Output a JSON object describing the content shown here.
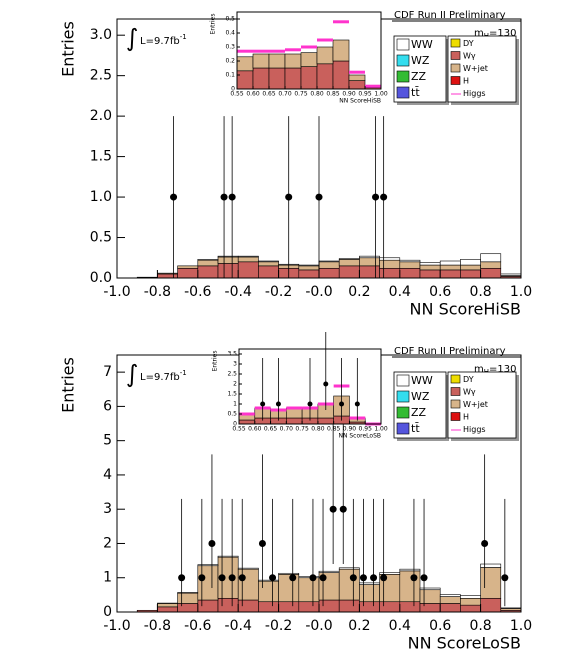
{
  "chart_data": [
    {
      "type": "histogram",
      "xlabel": "NN ScoreHiSB",
      "ylabel": "Entries",
      "bins": [
        -1.0,
        -0.9,
        -0.8,
        -0.7,
        -0.6,
        -0.5,
        -0.4,
        -0.3,
        -0.2,
        -0.1,
        0.0,
        0.1,
        0.2,
        0.3,
        0.4,
        0.5,
        0.6,
        0.7,
        0.8,
        0.9,
        1.0
      ],
      "series": [
        {
          "color": "#c9605c",
          "values": [
            0.0,
            0.01,
            0.05,
            0.12,
            0.15,
            0.18,
            0.2,
            0.15,
            0.12,
            0.1,
            0.12,
            0.15,
            0.15,
            0.12,
            0.12,
            0.1,
            0.1,
            0.1,
            0.12,
            0.02
          ]
        },
        {
          "color": "#d7b48a",
          "values": [
            0.0,
            0.0,
            0.01,
            0.03,
            0.07,
            0.08,
            0.06,
            0.05,
            0.04,
            0.05,
            0.08,
            0.08,
            0.1,
            0.1,
            0.08,
            0.06,
            0.06,
            0.06,
            0.08,
            0.01
          ]
        },
        {
          "color": "#ffffff",
          "values": [
            0.0,
            0.0,
            0.0,
            0.0,
            0.01,
            0.01,
            0.01,
            0.01,
            0.01,
            0.01,
            0.01,
            0.01,
            0.02,
            0.03,
            0.02,
            0.03,
            0.05,
            0.07,
            0.1,
            0.02
          ]
        }
      ],
      "points": {
        "x": [
          -0.72,
          -0.47,
          -0.43,
          -0.15,
          0.0,
          0.28,
          0.32
        ],
        "values": [
          1,
          1,
          1,
          1,
          1,
          1,
          1
        ],
        "err_low": [
          1,
          1,
          1,
          1,
          1,
          1,
          1
        ],
        "err_high": [
          1,
          1,
          1,
          1,
          1,
          1,
          1
        ]
      },
      "xlim": [
        -1.0,
        1.0
      ],
      "xticks": [
        {
          "value": -1.0,
          "label": "-1.0"
        },
        {
          "value": -0.8,
          "label": "-0.8"
        },
        {
          "value": -0.6,
          "label": "-0.6"
        },
        {
          "value": -0.4,
          "label": "-0.4"
        },
        {
          "value": -0.2,
          "label": "-0.2"
        },
        {
          "value": 0.0,
          "label": "-0.0"
        },
        {
          "value": 0.2,
          "label": "0.2"
        },
        {
          "value": 0.4,
          "label": "0.4"
        },
        {
          "value": 0.6,
          "label": "0.6"
        },
        {
          "value": 0.8,
          "label": "0.8"
        },
        {
          "value": 1.0,
          "label": "1.0"
        }
      ],
      "ylim": [
        0,
        3.2
      ],
      "yticks": [
        {
          "value": 0,
          "label": "0.0"
        },
        {
          "value": 0.5,
          "label": "0.5"
        },
        {
          "value": 1,
          "label": "1.0"
        },
        {
          "value": 1.5,
          "label": "1.5"
        },
        {
          "value": 2,
          "label": "2.0"
        },
        {
          "value": 2.5,
          "label": "2.5"
        },
        {
          "value": 3,
          "label": "3.0"
        }
      ],
      "experiment": "CDF Run II Preliminary",
      "mass": {
        "text": "m",
        "sub": "H",
        "rest": "=130"
      },
      "lumi": {
        "symbol": "∫",
        "text": "L=9.7fb",
        "sup": "-1"
      },
      "legend": [
        {
          "name": "WW",
          "color": "#ffffff"
        },
        {
          "name": "WZ",
          "color": "#33ddee"
        },
        {
          "name": "ZZ",
          "color": "#33bb33"
        },
        {
          "name": "tt̄",
          "color": "#5555dd"
        },
        {
          "name": "DY",
          "color": "#eedd00"
        },
        {
          "name": "Wγ",
          "color": "#c9605c"
        },
        {
          "name": "W+jet",
          "color": "#d7b48a"
        },
        {
          "name": "H",
          "color": "#dd1111"
        },
        {
          "name": "Higgs",
          "color": "#ff33cc"
        }
      ]
    },
    {
      "type": "histogram",
      "xlabel": "NN ScoreHiSB",
      "ylabel": "Entries",
      "bins": [
        0.55,
        0.6,
        0.65,
        0.7,
        0.75,
        0.8,
        0.85,
        0.9,
        0.95,
        1.0
      ],
      "series": [
        {
          "color": "#c9605c",
          "values": [
            0.13,
            0.15,
            0.15,
            0.15,
            0.16,
            0.18,
            0.2,
            0.06,
            0.01
          ]
        },
        {
          "color": "#d7b48a",
          "values": [
            0.1,
            0.1,
            0.1,
            0.1,
            0.1,
            0.12,
            0.15,
            0.04,
            0.01
          ]
        }
      ],
      "line": {
        "color": "#ff33cc",
        "values": [
          0.27,
          0.27,
          0.27,
          0.28,
          0.3,
          0.35,
          0.48,
          0.12,
          0.02
        ]
      },
      "xlim": [
        0.55,
        1.0
      ],
      "xticks": [
        {
          "value": 0.55,
          "label": "0.55"
        },
        {
          "value": 0.6,
          "label": "0.60"
        },
        {
          "value": 0.65,
          "label": "0.65"
        },
        {
          "value": 0.7,
          "label": "0.70"
        },
        {
          "value": 0.75,
          "label": "0.75"
        },
        {
          "value": 0.8,
          "label": "0.80"
        },
        {
          "value": 0.85,
          "label": "0.85"
        },
        {
          "value": 0.9,
          "label": "0.90"
        },
        {
          "value": 0.95,
          "label": "0.95"
        },
        {
          "value": 1.0,
          "label": "1.00"
        }
      ],
      "ylim": [
        0,
        0.55
      ],
      "yticks": [
        {
          "value": 0,
          "label": "0"
        },
        {
          "value": 0.1,
          "label": "0.1"
        },
        {
          "value": 0.2,
          "label": "0.2"
        },
        {
          "value": 0.3,
          "label": "0.3"
        },
        {
          "value": 0.4,
          "label": "0.4"
        },
        {
          "value": 0.5,
          "label": "0.5"
        }
      ]
    },
    {
      "type": "histogram",
      "xlabel": "NN ScoreLoSB",
      "ylabel": "Entries",
      "bins": [
        -1.0,
        -0.9,
        -0.8,
        -0.7,
        -0.6,
        -0.5,
        -0.4,
        -0.3,
        -0.2,
        -0.1,
        0.0,
        0.1,
        0.2,
        0.3,
        0.4,
        0.5,
        0.6,
        0.7,
        0.8,
        0.9,
        1.0
      ],
      "series": [
        {
          "color": "#c9605c",
          "values": [
            0.0,
            0.05,
            0.15,
            0.25,
            0.35,
            0.4,
            0.35,
            0.3,
            0.3,
            0.3,
            0.35,
            0.35,
            0.3,
            0.3,
            0.3,
            0.25,
            0.25,
            0.2,
            0.4,
            0.05
          ]
        },
        {
          "color": "#d7b48a",
          "values": [
            0.0,
            0.0,
            0.1,
            0.3,
            1.0,
            1.2,
            0.9,
            0.6,
            0.8,
            0.7,
            0.8,
            0.9,
            0.5,
            0.8,
            0.9,
            0.4,
            0.2,
            0.2,
            0.9,
            0.05
          ]
        },
        {
          "color": "#ffffff",
          "values": [
            0.0,
            0.0,
            0.01,
            0.02,
            0.03,
            0.03,
            0.03,
            0.03,
            0.03,
            0.03,
            0.04,
            0.04,
            0.05,
            0.05,
            0.05,
            0.05,
            0.06,
            0.08,
            0.1,
            0.02
          ]
        }
      ],
      "points": {
        "x": [
          -0.68,
          -0.58,
          -0.53,
          -0.48,
          -0.43,
          -0.38,
          -0.28,
          -0.23,
          -0.13,
          -0.03,
          0.02,
          0.07,
          0.12,
          0.17,
          0.22,
          0.27,
          0.32,
          0.47,
          0.52,
          0.82,
          0.92
        ],
        "values": [
          1,
          1,
          2,
          1,
          1,
          1,
          2,
          1,
          1,
          1,
          1,
          3,
          3,
          1,
          1,
          1,
          1,
          1,
          1,
          2,
          1
        ],
        "err_low": [
          0.83,
          0.83,
          1.3,
          0.83,
          0.83,
          0.83,
          1.3,
          0.83,
          0.83,
          0.83,
          0.83,
          1.6,
          1.6,
          0.83,
          0.83,
          0.83,
          0.83,
          0.83,
          0.83,
          1.3,
          0.83
        ],
        "err_high": [
          2.3,
          2.3,
          2.6,
          2.3,
          2.3,
          2.3,
          2.6,
          2.3,
          2.3,
          2.3,
          2.3,
          2.9,
          2.9,
          2.3,
          2.3,
          2.3,
          2.3,
          2.3,
          2.3,
          2.6,
          2.3
        ]
      },
      "xlim": [
        -1.0,
        1.0
      ],
      "xticks": [
        {
          "value": -1.0,
          "label": "-1.0"
        },
        {
          "value": -0.8,
          "label": "-0.8"
        },
        {
          "value": -0.6,
          "label": "-0.6"
        },
        {
          "value": -0.4,
          "label": "-0.4"
        },
        {
          "value": -0.2,
          "label": "-0.2"
        },
        {
          "value": 0.0,
          "label": "-0.0"
        },
        {
          "value": 0.2,
          "label": "0.2"
        },
        {
          "value": 0.4,
          "label": "0.4"
        },
        {
          "value": 0.6,
          "label": "0.6"
        },
        {
          "value": 0.8,
          "label": "0.8"
        },
        {
          "value": 1.0,
          "label": "1.0"
        }
      ],
      "ylim": [
        0,
        7.5
      ],
      "yticks": [
        0,
        1,
        2,
        3,
        4,
        5,
        6,
        7
      ],
      "experiment": "CDF Run II Preliminary",
      "mass": {
        "text": "m",
        "sub": "H",
        "rest": "=130"
      },
      "lumi": {
        "symbol": "∫",
        "text": "L=9.7fb",
        "sup": "-1"
      },
      "legend": [
        {
          "name": "WW",
          "color": "#ffffff"
        },
        {
          "name": "WZ",
          "color": "#33ddee"
        },
        {
          "name": "ZZ",
          "color": "#33bb33"
        },
        {
          "name": "tt̄",
          "color": "#5555dd"
        },
        {
          "name": "DY",
          "color": "#eedd00"
        },
        {
          "name": "Wγ",
          "color": "#c9605c"
        },
        {
          "name": "W+jet",
          "color": "#d7b48a"
        },
        {
          "name": "H",
          "color": "#dd1111"
        },
        {
          "name": "Higgs",
          "color": "#ff33cc"
        }
      ]
    },
    {
      "type": "histogram",
      "xlabel": "NN ScoreLoSB",
      "ylabel": "Entries",
      "bins": [
        0.55,
        0.6,
        0.65,
        0.7,
        0.75,
        0.8,
        0.85,
        0.9,
        0.95,
        1.0
      ],
      "series": [
        {
          "color": "#c9605c",
          "values": [
            0.2,
            0.3,
            0.3,
            0.3,
            0.3,
            0.3,
            0.4,
            0.1,
            0.0
          ]
        },
        {
          "color": "#d7b48a",
          "values": [
            0.3,
            0.5,
            0.4,
            0.5,
            0.5,
            0.7,
            1.0,
            0.2,
            0.0
          ]
        }
      ],
      "line": {
        "color": "#ff33cc",
        "values": [
          0.5,
          0.8,
          0.7,
          0.8,
          0.8,
          1.0,
          1.9,
          0.3,
          0.0
        ]
      },
      "points": {
        "x": [
          0.625,
          0.675,
          0.775,
          0.825,
          0.875,
          0.925
        ],
        "values": [
          1,
          1,
          1,
          2,
          1,
          1
        ],
        "err_low": [
          0.83,
          0.83,
          0.83,
          1.3,
          0.83,
          0.83
        ],
        "err_high": [
          2.3,
          2.3,
          2.3,
          2.6,
          2.3,
          2.3
        ]
      },
      "xlim": [
        0.55,
        1.0
      ],
      "xticks": [
        {
          "value": 0.55,
          "label": "0.55"
        },
        {
          "value": 0.6,
          "label": "0.60"
        },
        {
          "value": 0.65,
          "label": "0.65"
        },
        {
          "value": 0.7,
          "label": "0.70"
        },
        {
          "value": 0.75,
          "label": "0.75"
        },
        {
          "value": 0.8,
          "label": "0.80"
        },
        {
          "value": 0.85,
          "label": "0.85"
        },
        {
          "value": 0.9,
          "label": "0.90"
        },
        {
          "value": 0.95,
          "label": "0.95"
        },
        {
          "value": 1.0,
          "label": "1.00"
        }
      ],
      "ylim": [
        0,
        3.75
      ],
      "yticks": [
        {
          "value": 0,
          "label": "0"
        },
        {
          "value": 0.5,
          "label": "0.5"
        },
        {
          "value": 1,
          "label": "1"
        },
        {
          "value": 1.5,
          "label": "1.5"
        },
        {
          "value": 2,
          "label": "2"
        },
        {
          "value": 2.5,
          "label": "2.5"
        },
        {
          "value": 3,
          "label": "3"
        },
        {
          "value": 3.5,
          "label": "3.5"
        }
      ]
    }
  ]
}
